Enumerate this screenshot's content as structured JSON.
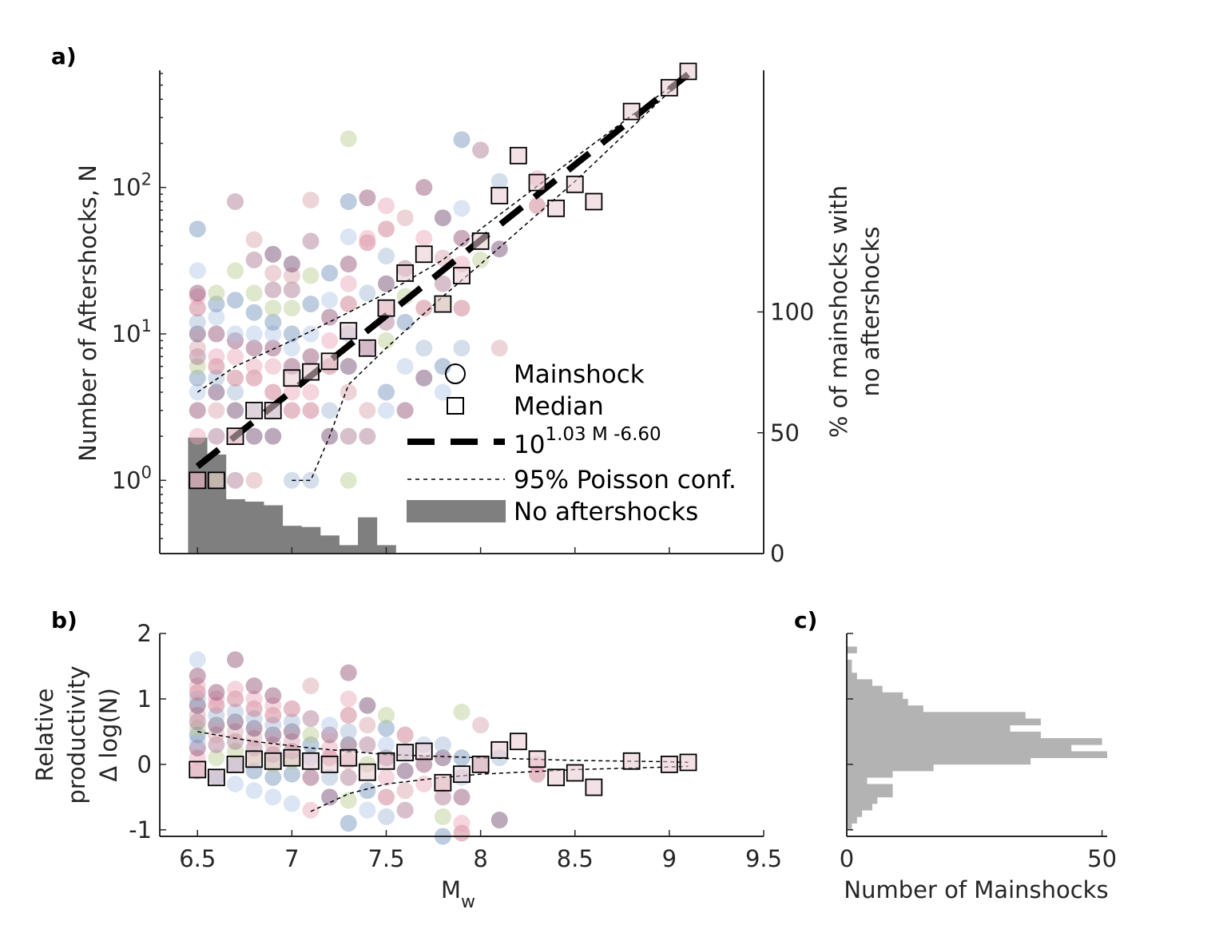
{
  "chart_data": [
    {
      "panel": "a)",
      "type": "scatter",
      "xlim": [
        6.3,
        9.5
      ],
      "y_scale": "log",
      "ylim_log10": [
        -0.5,
        2.8
      ],
      "ylabel": "Number of Aftershocks, N",
      "y_ticks": [
        "10^0",
        "10^1",
        "10^2"
      ],
      "right_axis": {
        "label_lines": [
          "% of mainshocks with",
          "no aftershocks"
        ],
        "ticks": [
          0,
          50,
          100
        ],
        "ylim": [
          0,
          200
        ]
      },
      "legend": {
        "placement": "bottom-right",
        "entries": [
          "Mainshock",
          "Median",
          "10^{1.03 M -6.60}",
          "95% Poisson conf.",
          "No aftershocks"
        ],
        "fit_base": "10",
        "fit_exponent": "1.03 M -6.60"
      },
      "fit": {
        "a": 1.03,
        "b": -6.6,
        "x_range": [
          6.5,
          9.1
        ]
      },
      "median": {
        "x": [
          6.5,
          6.6,
          6.7,
          6.8,
          6.9,
          7.0,
          7.1,
          7.2,
          7.3,
          7.4,
          7.5,
          7.6,
          7.7,
          7.8,
          7.9,
          8.0,
          8.1,
          8.2,
          8.3,
          8.4,
          8.5,
          8.6,
          8.8,
          9.0,
          9.1
        ],
        "y": [
          1,
          1,
          2,
          3,
          3,
          5,
          5.5,
          6.5,
          10.5,
          8,
          15,
          26,
          35,
          16,
          25,
          43,
          88,
          165,
          108,
          72,
          105,
          80,
          330,
          480,
          620
        ]
      },
      "conf_upper": {
        "x": [
          6.5,
          6.7,
          7.0,
          7.3,
          7.5,
          7.8,
          8.0,
          8.5,
          9.0,
          9.1
        ],
        "y": [
          4,
          6,
          9,
          14,
          19,
          32,
          52,
          160,
          480,
          600
        ]
      },
      "conf_lower": {
        "x": [
          7.0,
          7.1,
          7.2,
          7.3,
          7.5,
          7.8,
          8.0,
          8.5,
          9.0,
          9.1
        ],
        "y": [
          1,
          1,
          2,
          4.5,
          8,
          18,
          30,
          110,
          450,
          560
        ]
      },
      "no_aftershocks_pct": {
        "bin_edges": [
          6.45,
          6.55,
          6.65,
          6.75,
          6.85,
          6.95,
          7.05,
          7.15,
          7.25,
          7.35,
          7.45,
          7.55
        ],
        "values": [
          48,
          41,
          22.5,
          21.5,
          20,
          11.5,
          11,
          7.5,
          3.5,
          15,
          3.5
        ]
      },
      "mainshocks": [
        [
          6.5,
          1
        ],
        [
          6.5,
          2
        ],
        [
          6.5,
          3
        ],
        [
          6.5,
          4
        ],
        [
          6.5,
          5
        ],
        [
          6.5,
          6
        ],
        [
          6.5,
          7
        ],
        [
          6.5,
          8
        ],
        [
          6.5,
          10
        ],
        [
          6.5,
          12
        ],
        [
          6.5,
          15
        ],
        [
          6.5,
          18
        ],
        [
          6.5,
          19
        ],
        [
          6.5,
          27
        ],
        [
          6.5,
          52
        ],
        [
          6.6,
          1
        ],
        [
          6.6,
          2
        ],
        [
          6.6,
          3
        ],
        [
          6.6,
          4
        ],
        [
          6.6,
          5
        ],
        [
          6.6,
          6
        ],
        [
          6.6,
          7
        ],
        [
          6.6,
          10
        ],
        [
          6.6,
          13
        ],
        [
          6.6,
          16
        ],
        [
          6.6,
          19
        ],
        [
          6.7,
          1
        ],
        [
          6.7,
          2
        ],
        [
          6.7,
          3
        ],
        [
          6.7,
          4
        ],
        [
          6.7,
          5
        ],
        [
          6.7,
          7
        ],
        [
          6.7,
          9
        ],
        [
          6.7,
          10
        ],
        [
          6.7,
          17
        ],
        [
          6.7,
          27
        ],
        [
          6.7,
          80
        ],
        [
          6.8,
          1
        ],
        [
          6.8,
          2
        ],
        [
          6.8,
          3
        ],
        [
          6.8,
          5
        ],
        [
          6.8,
          6
        ],
        [
          6.8,
          8
        ],
        [
          6.8,
          10
        ],
        [
          6.8,
          14
        ],
        [
          6.8,
          19
        ],
        [
          6.8,
          32
        ],
        [
          6.8,
          44
        ],
        [
          6.9,
          2
        ],
        [
          6.9,
          3
        ],
        [
          6.9,
          4
        ],
        [
          6.9,
          6
        ],
        [
          6.9,
          8
        ],
        [
          6.9,
          10
        ],
        [
          6.9,
          12
        ],
        [
          6.9,
          15
        ],
        [
          6.9,
          20
        ],
        [
          6.9,
          26
        ],
        [
          6.9,
          35
        ],
        [
          7.0,
          1
        ],
        [
          7.0,
          3
        ],
        [
          7.0,
          4
        ],
        [
          7.0,
          6
        ],
        [
          7.0,
          8
        ],
        [
          7.0,
          10
        ],
        [
          7.0,
          15
        ],
        [
          7.0,
          20
        ],
        [
          7.0,
          25
        ],
        [
          7.0,
          30
        ],
        [
          7.1,
          1
        ],
        [
          7.1,
          3
        ],
        [
          7.1,
          4
        ],
        [
          7.1,
          7
        ],
        [
          7.1,
          10
        ],
        [
          7.1,
          16
        ],
        [
          7.1,
          25
        ],
        [
          7.1,
          43
        ],
        [
          7.1,
          82
        ],
        [
          7.2,
          2
        ],
        [
          7.2,
          3
        ],
        [
          7.2,
          6
        ],
        [
          7.2,
          9
        ],
        [
          7.2,
          13
        ],
        [
          7.2,
          17
        ],
        [
          7.2,
          26
        ],
        [
          7.3,
          1
        ],
        [
          7.3,
          2
        ],
        [
          7.3,
          4
        ],
        [
          7.3,
          6
        ],
        [
          7.3,
          10
        ],
        [
          7.3,
          16
        ],
        [
          7.3,
          22
        ],
        [
          7.3,
          30
        ],
        [
          7.3,
          46
        ],
        [
          7.3,
          80
        ],
        [
          7.3,
          215
        ],
        [
          7.4,
          2
        ],
        [
          7.4,
          3
        ],
        [
          7.4,
          8
        ],
        [
          7.4,
          19
        ],
        [
          7.4,
          42
        ],
        [
          7.4,
          45
        ],
        [
          7.4,
          85
        ],
        [
          7.5,
          3
        ],
        [
          7.5,
          4
        ],
        [
          7.5,
          9
        ],
        [
          7.5,
          12
        ],
        [
          7.5,
          15
        ],
        [
          7.5,
          22
        ],
        [
          7.5,
          34
        ],
        [
          7.5,
          52
        ],
        [
          7.5,
          75
        ],
        [
          7.6,
          3
        ],
        [
          7.6,
          6
        ],
        [
          7.6,
          12
        ],
        [
          7.6,
          18
        ],
        [
          7.6,
          28
        ],
        [
          7.6,
          62
        ],
        [
          7.7,
          5
        ],
        [
          7.7,
          8
        ],
        [
          7.7,
          15
        ],
        [
          7.7,
          45
        ],
        [
          7.7,
          100
        ],
        [
          7.8,
          4
        ],
        [
          7.8,
          6
        ],
        [
          7.8,
          16
        ],
        [
          7.8,
          22
        ],
        [
          7.8,
          33
        ],
        [
          7.8,
          62
        ],
        [
          7.9,
          8
        ],
        [
          7.9,
          15
        ],
        [
          7.9,
          30
        ],
        [
          7.9,
          45
        ],
        [
          7.9,
          72
        ],
        [
          7.9,
          212
        ],
        [
          8.0,
          32
        ],
        [
          8.0,
          180
        ],
        [
          8.1,
          8
        ],
        [
          8.1,
          38
        ],
        [
          8.1,
          110
        ],
        [
          8.3,
          75
        ],
        [
          8.3,
          115
        ]
      ]
    },
    {
      "panel": "b)",
      "type": "scatter",
      "xlabel_main": "M",
      "xlabel_sub": "w",
      "xlim": [
        6.3,
        9.5
      ],
      "ylim": [
        -1.1,
        2
      ],
      "x_ticks": [
        "6.5",
        "7",
        "7.5",
        "8",
        "8.5",
        "9",
        "9.5"
      ],
      "y_ticks": [
        "-1",
        "0",
        "1",
        "2"
      ],
      "ylabel_lines": [
        "Relative",
        "productivity",
        "Δ log(N)"
      ],
      "median": {
        "x": [
          6.5,
          6.6,
          6.7,
          6.8,
          6.9,
          7.0,
          7.1,
          7.2,
          7.3,
          7.4,
          7.5,
          7.6,
          7.7,
          7.8,
          7.9,
          8.0,
          8.1,
          8.2,
          8.3,
          8.4,
          8.5,
          8.6,
          8.8,
          9.0,
          9.1
        ],
        "y": [
          -0.08,
          -0.2,
          0.0,
          0.08,
          0.05,
          0.1,
          0.05,
          0.0,
          0.1,
          -0.12,
          0.05,
          0.18,
          0.2,
          -0.28,
          -0.15,
          0.0,
          0.22,
          0.35,
          0.08,
          -0.2,
          -0.13,
          -0.35,
          0.05,
          0.0,
          0.03
        ]
      },
      "conf_upper": {
        "x": [
          6.5,
          6.8,
          7.1,
          7.5,
          8.0,
          8.5,
          9.0,
          9.1
        ],
        "y": [
          0.5,
          0.35,
          0.25,
          0.15,
          0.1,
          0.06,
          0.04,
          0.03
        ]
      },
      "conf_lower": {
        "x": [
          7.1,
          7.3,
          7.5,
          7.8,
          8.0,
          8.5,
          9.0,
          9.1
        ],
        "y": [
          -0.72,
          -0.45,
          -0.3,
          -0.2,
          -0.15,
          -0.08,
          -0.04,
          -0.03
        ]
      },
      "mainshocks": [
        [
          6.5,
          -0.1
        ],
        [
          6.5,
          0.1
        ],
        [
          6.5,
          0.25
        ],
        [
          6.5,
          0.35
        ],
        [
          6.5,
          0.45
        ],
        [
          6.5,
          0.55
        ],
        [
          6.5,
          0.65
        ],
        [
          6.5,
          0.75
        ],
        [
          6.5,
          0.9
        ],
        [
          6.5,
          1.0
        ],
        [
          6.5,
          1.1
        ],
        [
          6.5,
          1.2
        ],
        [
          6.5,
          1.35
        ],
        [
          6.5,
          1.6
        ],
        [
          6.6,
          -0.2
        ],
        [
          6.6,
          0.1
        ],
        [
          6.6,
          0.3
        ],
        [
          6.6,
          0.45
        ],
        [
          6.6,
          0.6
        ],
        [
          6.6,
          0.75
        ],
        [
          6.6,
          0.9
        ],
        [
          6.6,
          1.0
        ],
        [
          6.6,
          1.1
        ],
        [
          6.7,
          -0.3
        ],
        [
          6.7,
          0.0
        ],
        [
          6.7,
          0.2
        ],
        [
          6.7,
          0.35
        ],
        [
          6.7,
          0.5
        ],
        [
          6.7,
          0.65
        ],
        [
          6.7,
          0.8
        ],
        [
          6.7,
          1.0
        ],
        [
          6.7,
          1.15
        ],
        [
          6.7,
          1.6
        ],
        [
          6.8,
          -0.4
        ],
        [
          6.8,
          -0.1
        ],
        [
          6.8,
          0.1
        ],
        [
          6.8,
          0.25
        ],
        [
          6.8,
          0.4
        ],
        [
          6.8,
          0.55
        ],
        [
          6.8,
          0.7
        ],
        [
          6.8,
          0.85
        ],
        [
          6.8,
          1.0
        ],
        [
          6.8,
          1.2
        ],
        [
          6.9,
          -0.5
        ],
        [
          6.9,
          -0.2
        ],
        [
          6.9,
          0.0
        ],
        [
          6.9,
          0.15
        ],
        [
          6.9,
          0.3
        ],
        [
          6.9,
          0.45
        ],
        [
          6.9,
          0.6
        ],
        [
          6.9,
          0.75
        ],
        [
          6.9,
          0.9
        ],
        [
          6.9,
          1.05
        ],
        [
          7.0,
          -0.6
        ],
        [
          7.0,
          -0.15
        ],
        [
          7.0,
          0.05
        ],
        [
          7.0,
          0.2
        ],
        [
          7.0,
          0.35
        ],
        [
          7.0,
          0.5
        ],
        [
          7.0,
          0.65
        ],
        [
          7.0,
          0.85
        ],
        [
          7.1,
          -0.7
        ],
        [
          7.1,
          -0.2
        ],
        [
          7.1,
          0.1
        ],
        [
          7.1,
          0.3
        ],
        [
          7.1,
          0.45
        ],
        [
          7.1,
          0.7
        ],
        [
          7.1,
          1.2
        ],
        [
          7.2,
          -0.5
        ],
        [
          7.2,
          -0.2
        ],
        [
          7.2,
          0.1
        ],
        [
          7.2,
          0.25
        ],
        [
          7.2,
          0.45
        ],
        [
          7.2,
          0.6
        ],
        [
          7.3,
          -0.9
        ],
        [
          7.3,
          -0.55
        ],
        [
          7.3,
          -0.2
        ],
        [
          7.3,
          0.05
        ],
        [
          7.3,
          0.3
        ],
        [
          7.3,
          0.5
        ],
        [
          7.3,
          0.75
        ],
        [
          7.3,
          1.0
        ],
        [
          7.3,
          1.4
        ],
        [
          7.4,
          -0.7
        ],
        [
          7.4,
          -0.4
        ],
        [
          7.4,
          0.0
        ],
        [
          7.4,
          0.3
        ],
        [
          7.4,
          0.6
        ],
        [
          7.4,
          0.9
        ],
        [
          7.5,
          -0.8
        ],
        [
          7.5,
          -0.5
        ],
        [
          7.5,
          -0.2
        ],
        [
          7.5,
          0.1
        ],
        [
          7.5,
          0.3
        ],
        [
          7.5,
          0.55
        ],
        [
          7.5,
          0.75
        ],
        [
          7.6,
          -0.7
        ],
        [
          7.6,
          -0.4
        ],
        [
          7.6,
          -0.1
        ],
        [
          7.6,
          0.2
        ],
        [
          7.6,
          0.45
        ],
        [
          7.7,
          -0.3
        ],
        [
          7.7,
          0.0
        ],
        [
          7.7,
          0.3
        ],
        [
          7.8,
          -1.1
        ],
        [
          7.8,
          -0.8
        ],
        [
          7.8,
          -0.5
        ],
        [
          7.8,
          -0.3
        ],
        [
          7.8,
          0.1
        ],
        [
          7.8,
          0.3
        ],
        [
          7.9,
          -1.05
        ],
        [
          7.9,
          -0.9
        ],
        [
          7.9,
          -0.5
        ],
        [
          7.9,
          -0.2
        ],
        [
          7.9,
          0.1
        ],
        [
          7.9,
          0.8
        ],
        [
          8.0,
          0.0
        ],
        [
          8.0,
          0.6
        ],
        [
          8.1,
          -0.85
        ],
        [
          8.1,
          0.1
        ],
        [
          8.3,
          -0.15
        ],
        [
          8.3,
          0.0
        ]
      ]
    },
    {
      "panel": "c)",
      "type": "bar",
      "orientation": "horizontal",
      "xlabel": "Number of Mainshocks",
      "x_ticks": [
        "0",
        "50"
      ],
      "xlim": [
        0,
        51
      ],
      "ylim": [
        -1.1,
        2
      ],
      "bin_edges": [
        -1.0,
        -0.9,
        -0.8,
        -0.7,
        -0.6,
        -0.5,
        -0.4,
        -0.3,
        -0.2,
        -0.1,
        0.0,
        0.1,
        0.2,
        0.3,
        0.4,
        0.5,
        0.6,
        0.7,
        0.8,
        0.9,
        1.0,
        1.1,
        1.2,
        1.3,
        1.4,
        1.5,
        1.6,
        1.7,
        1.8
      ],
      "counts": [
        1,
        2,
        3,
        5,
        6,
        9,
        9,
        4,
        9,
        17,
        36,
        51,
        44,
        50,
        38,
        32,
        38,
        35,
        15,
        12,
        11,
        7,
        5,
        2,
        1,
        1,
        0,
        2
      ]
    }
  ]
}
